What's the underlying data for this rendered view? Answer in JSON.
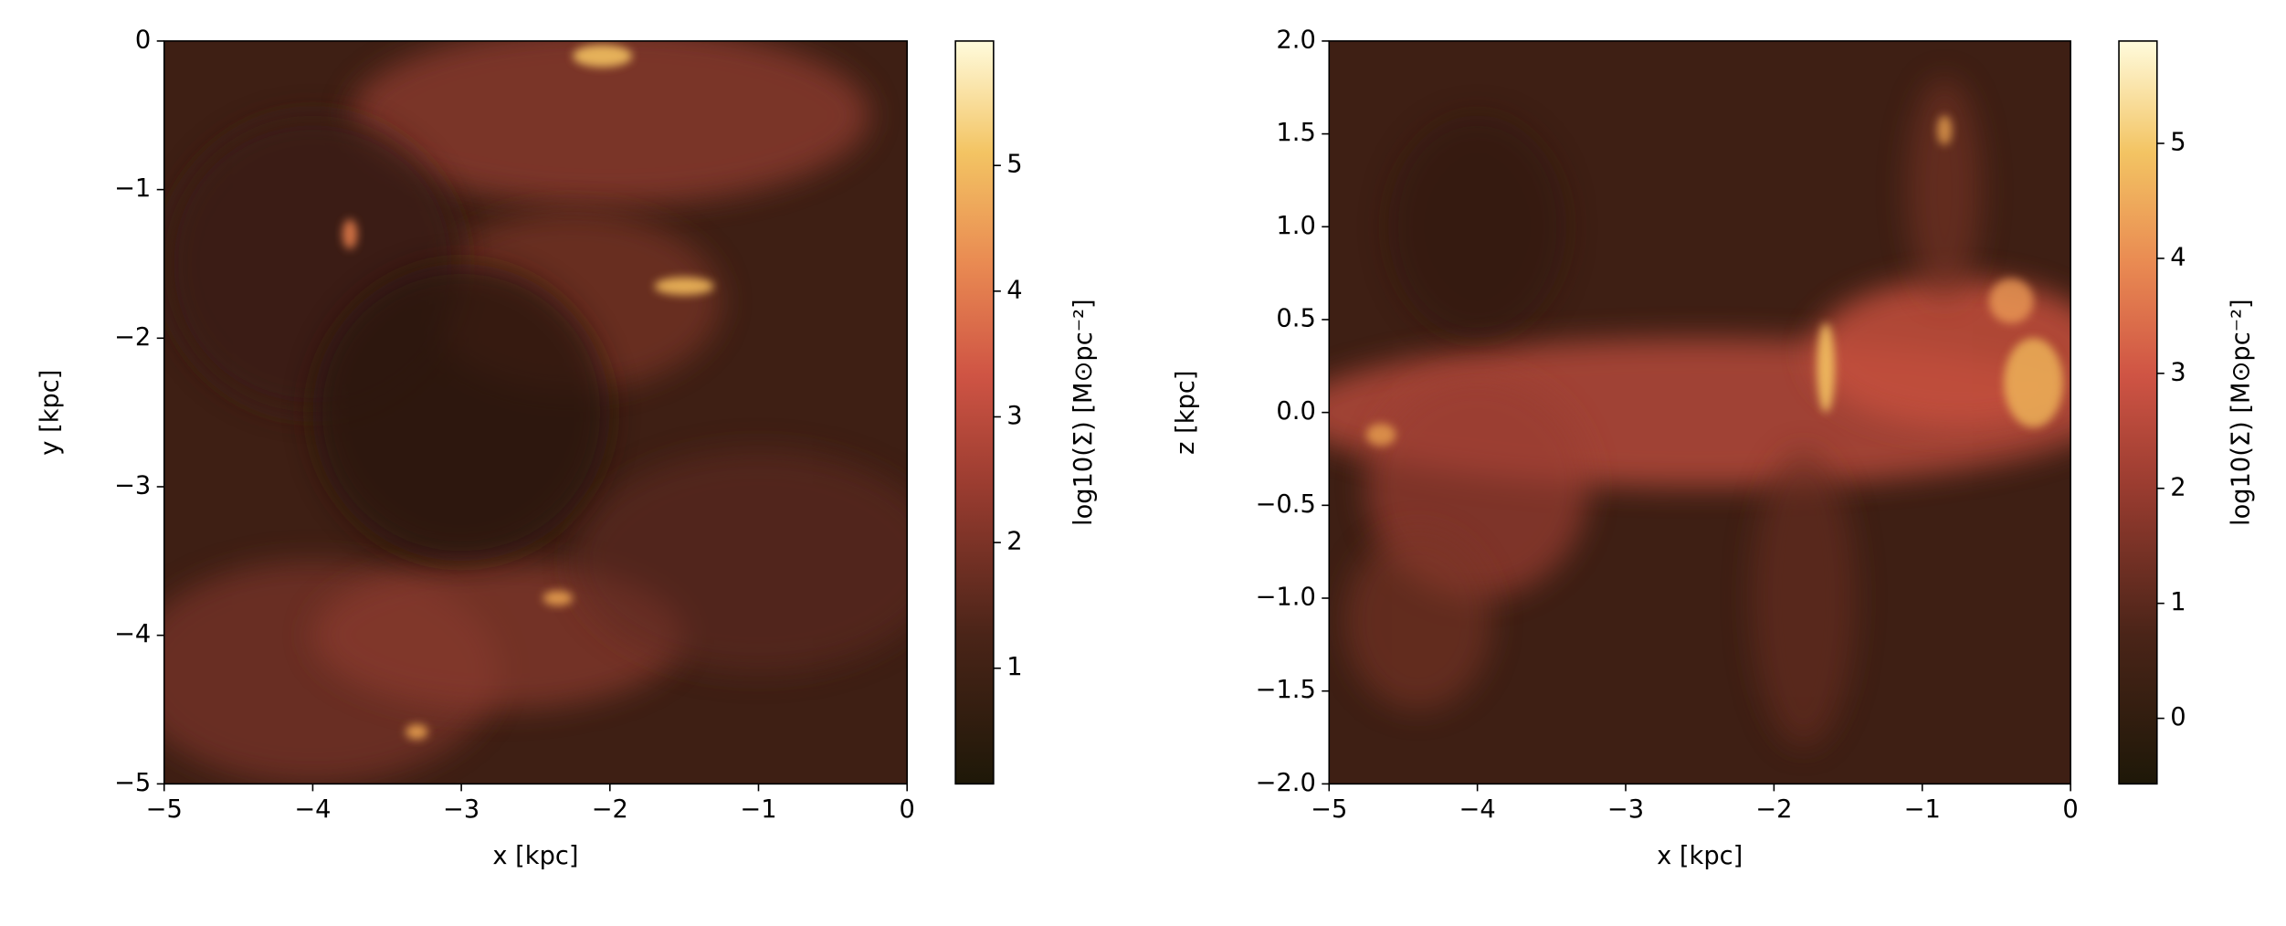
{
  "chart_data": [
    {
      "type": "heatmap",
      "xlabel": "x [kpc]",
      "ylabel": "y [kpc]",
      "xlim": [
        -5,
        0
      ],
      "ylim": [
        -5,
        0
      ],
      "xticks": [
        {
          "value": -5,
          "label": "−5"
        },
        {
          "value": -4,
          "label": "−4"
        },
        {
          "value": -3,
          "label": "−3"
        },
        {
          "value": -2,
          "label": "−2"
        },
        {
          "value": -1,
          "label": "−1"
        },
        0
      ],
      "yticks": [
        {
          "value": -5,
          "label": "−5"
        },
        {
          "value": -4,
          "label": "−4"
        },
        {
          "value": -3,
          "label": "−3"
        },
        {
          "value": -2,
          "label": "−2"
        },
        {
          "value": -1,
          "label": "−1"
        },
        0
      ],
      "colorbar": {
        "label": "log10(Σ) [M⊙pc⁻²]",
        "lim": [
          0.08,
          5.99
        ],
        "ticks": [
          1,
          2,
          3,
          4,
          5
        ]
      }
    },
    {
      "type": "heatmap",
      "xlabel": "x [kpc]",
      "ylabel": "z [kpc]",
      "xlim": [
        -5,
        0
      ],
      "ylim": [
        -2,
        2
      ],
      "xticks": [
        {
          "value": -5,
          "label": "−5"
        },
        {
          "value": -4,
          "label": "−4"
        },
        {
          "value": -3,
          "label": "−3"
        },
        {
          "value": -2,
          "label": "−2"
        },
        {
          "value": -1,
          "label": "−1"
        },
        0
      ],
      "yticks": [
        {
          "value": -2,
          "label": "−2.0"
        },
        {
          "value": -1.5,
          "label": "−1.5"
        },
        {
          "value": -1,
          "label": "−1.0"
        },
        {
          "value": -0.5,
          "label": "−0.5"
        },
        {
          "value": 0,
          "label": "0.0"
        },
        0.5,
        {
          "value": 1,
          "label": "1.0"
        },
        1.5,
        {
          "value": 2,
          "label": "2.0"
        }
      ],
      "colorbar": {
        "label": "log10(Σ) [M⊙pc⁻²]",
        "lim": [
          -0.57,
          5.89
        ],
        "ticks": [
          0,
          1,
          2,
          3,
          4,
          5
        ]
      }
    }
  ]
}
